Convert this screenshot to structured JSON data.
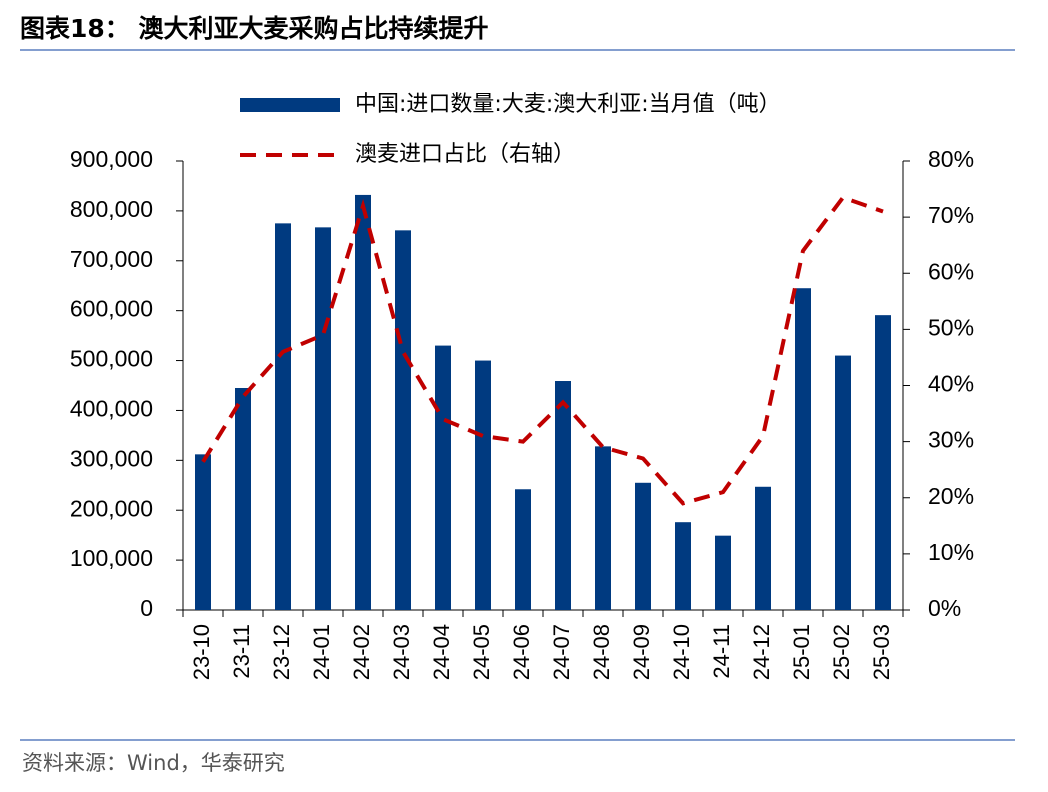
{
  "chart_data": {
    "type": "bar-line",
    "title": "图表18：  澳大利亚大麦采购占比持续提升",
    "source": "资料来源：Wind，华泰研究",
    "categories": [
      "23-10",
      "23-11",
      "23-12",
      "24-01",
      "24-02",
      "24-03",
      "24-04",
      "24-05",
      "24-06",
      "24-07",
      "24-08",
      "24-09",
      "24-10",
      "24-11",
      "24-12",
      "25-01",
      "25-02",
      "25-03"
    ],
    "series": [
      {
        "name": "中国:进口数量:大麦:澳大利亚:当月值（吨）",
        "color": "#003a80",
        "type": "bar",
        "values": [
          312000,
          445000,
          775000,
          767000,
          832000,
          761000,
          530000,
          500000,
          242000,
          459000,
          328000,
          255000,
          176000,
          149000,
          247000,
          645000,
          510000,
          591000
        ]
      },
      {
        "name": "澳麦进口占比（右轴）",
        "color": "#c00000",
        "type": "line",
        "dashed": true,
        "axis": "y2",
        "values": [
          26.4,
          38,
          46,
          49,
          72,
          46,
          34,
          31,
          30,
          37,
          29,
          27,
          19,
          21,
          31,
          64,
          73.5,
          71
        ]
      }
    ],
    "ylim": [
      0,
      900000
    ],
    "yticks": [
      0,
      {
        "value": 100000,
        "label": "100,000"
      },
      {
        "value": 200000,
        "label": "200,000"
      },
      {
        "value": 300000,
        "label": "300,000"
      },
      {
        "value": 400000,
        "label": "400,000"
      },
      {
        "value": 500000,
        "label": "500,000"
      },
      {
        "value": 600000,
        "label": "600,000"
      },
      {
        "value": 700000,
        "label": "700,000"
      },
      {
        "value": 800000,
        "label": "800,000"
      },
      {
        "value": 900000,
        "label": "900,000"
      }
    ],
    "y2lim": [
      0,
      80
    ],
    "y2ticks": [
      {
        "value": 0,
        "label": "0%"
      },
      {
        "value": 10,
        "label": "10%"
      },
      {
        "value": 20,
        "label": "20%"
      },
      {
        "value": 30,
        "label": "30%"
      },
      {
        "value": 40,
        "label": "40%"
      },
      {
        "value": 50,
        "label": "50%"
      },
      {
        "value": 60,
        "label": "60%"
      },
      {
        "value": 70,
        "label": "70%"
      },
      {
        "value": 80,
        "label": "80%"
      }
    ]
  }
}
